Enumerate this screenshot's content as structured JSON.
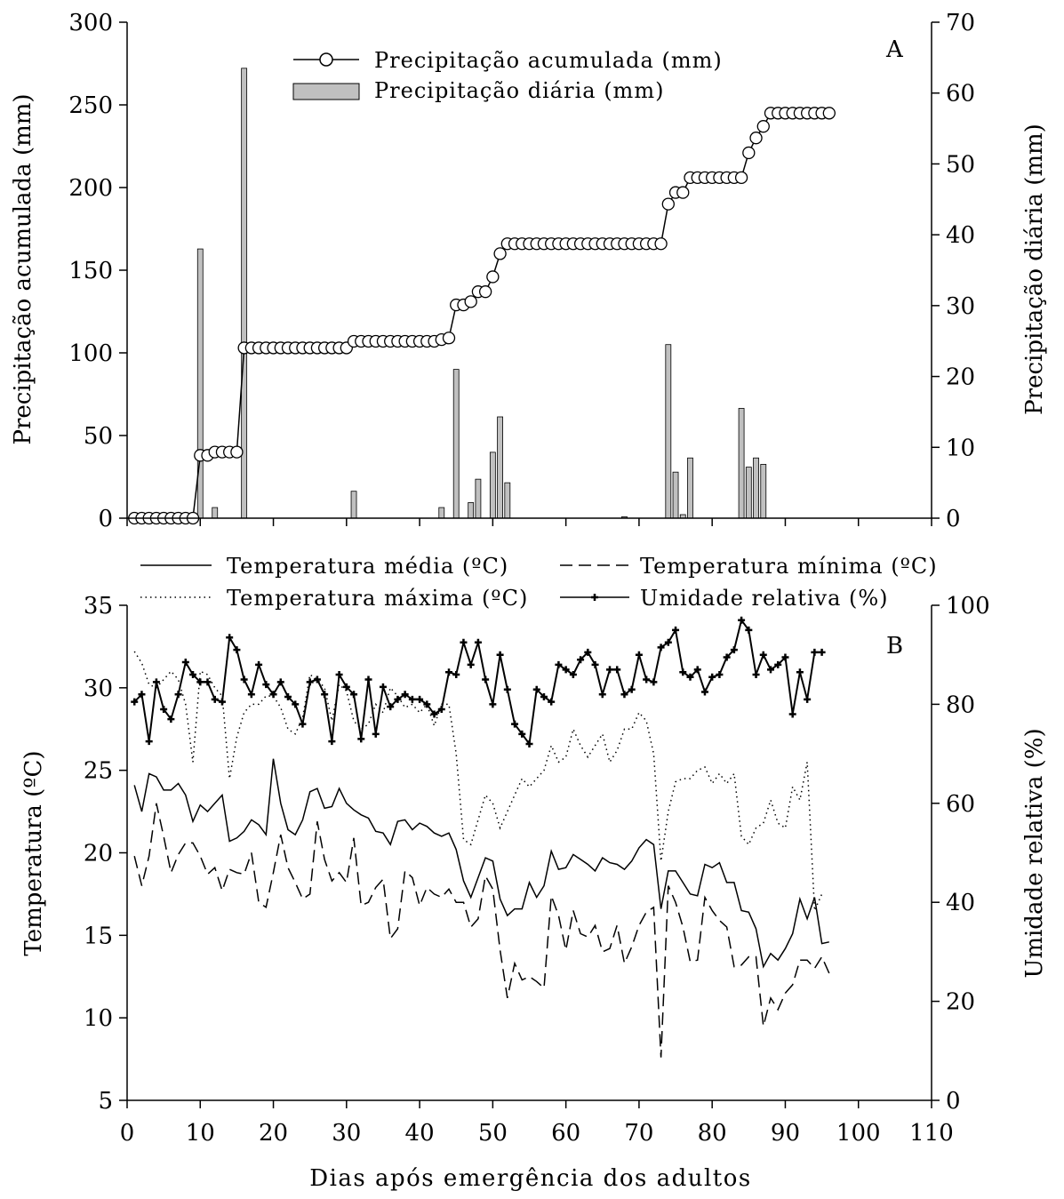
{
  "x_axis": {
    "label": "Dias após emergência dos adultos",
    "min": 0,
    "max": 110,
    "ticks": [
      0,
      10,
      20,
      30,
      40,
      50,
      60,
      70,
      80,
      90,
      100,
      110
    ]
  },
  "chart_data": [
    {
      "panel_label": "A",
      "type": "bar+line",
      "legend_position": "top-center",
      "grid": false,
      "y_left": {
        "label": "Precipitação acumulada (mm)",
        "min": 0,
        "max": 300,
        "ticks": [
          0,
          50,
          100,
          150,
          200,
          250,
          300
        ]
      },
      "y_right": {
        "label": "Precipitação diária (mm)",
        "min": 0,
        "max": 70,
        "ticks": [
          0,
          10,
          20,
          30,
          40,
          50,
          60,
          70
        ]
      },
      "series": [
        {
          "name": "Precipitação acumulada (mm)",
          "type": "line",
          "axis": "left",
          "marker": "open-circle",
          "x": [
            1,
            2,
            3,
            4,
            5,
            6,
            7,
            8,
            9,
            10,
            11,
            12,
            13,
            14,
            15,
            16,
            17,
            18,
            19,
            20,
            21,
            22,
            23,
            24,
            25,
            26,
            27,
            28,
            29,
            30,
            31,
            32,
            33,
            34,
            35,
            36,
            37,
            38,
            39,
            40,
            41,
            42,
            43,
            44,
            45,
            46,
            47,
            48,
            49,
            50,
            51,
            52,
            53,
            54,
            55,
            56,
            57,
            58,
            59,
            60,
            61,
            62,
            63,
            64,
            65,
            66,
            67,
            68,
            69,
            70,
            71,
            72,
            73,
            74,
            75,
            76,
            77,
            78,
            79,
            80,
            81,
            82,
            83,
            84,
            85,
            86,
            87,
            88,
            89,
            90,
            91,
            92,
            93,
            94,
            95,
            96
          ],
          "y": [
            0,
            0,
            0,
            0,
            0,
            0,
            0,
            0,
            0,
            38,
            38,
            40,
            40,
            40,
            40,
            103,
            103,
            103,
            103,
            103,
            103,
            103,
            103,
            103,
            103,
            103,
            103,
            103,
            103,
            103,
            107,
            107,
            107,
            107,
            107,
            107,
            107,
            107,
            107,
            107,
            107,
            107,
            108,
            109,
            129,
            129,
            131,
            137,
            137,
            146,
            160,
            166,
            166,
            166,
            166,
            166,
            166,
            166,
            166,
            166,
            166,
            166,
            166,
            166,
            166,
            166,
            166,
            166,
            166,
            166,
            166,
            166,
            166,
            190,
            197,
            197,
            206,
            206,
            206,
            206,
            206,
            206,
            206,
            206,
            221,
            230,
            237,
            245,
            245,
            245,
            245,
            245,
            245,
            245,
            245,
            245
          ]
        },
        {
          "name": "Precipitação diária (mm)",
          "type": "bar",
          "axis": "right",
          "x": [
            10,
            12,
            16,
            31,
            43,
            45,
            47,
            48,
            50,
            51,
            52,
            68,
            74,
            75,
            76,
            77,
            84,
            85,
            86,
            87
          ],
          "y": [
            38,
            1.5,
            63.5,
            3.8,
            1.5,
            21,
            2.2,
            5.5,
            9.3,
            14.3,
            5,
            0.2,
            24.5,
            6.5,
            0.5,
            8.5,
            15.5,
            7.2,
            8.5,
            7.6
          ]
        }
      ]
    },
    {
      "panel_label": "B",
      "type": "line",
      "legend_position": "top-center",
      "grid": false,
      "y_left": {
        "label": "Temperatura (ºC)",
        "min": 5,
        "max": 35,
        "ticks": [
          5,
          10,
          15,
          20,
          25,
          30,
          35
        ]
      },
      "y_right": {
        "label": "Umidade relativa (%)",
        "min": 0,
        "max": 100,
        "ticks": [
          0,
          20,
          40,
          60,
          80,
          100
        ]
      },
      "series": [
        {
          "name": "Temperatura média (ºC)",
          "style": "solid",
          "axis": "left",
          "x_start": 1,
          "y": [
            24.1,
            22.5,
            24.8,
            24.6,
            23.8,
            23.8,
            24.2,
            23.5,
            21.9,
            22.9,
            22.5,
            23.0,
            23.5,
            20.7,
            20.9,
            21.3,
            22.0,
            21.7,
            21.1,
            25.7,
            23.0,
            21.4,
            21.1,
            22.0,
            23.7,
            23.9,
            22.7,
            22.8,
            23.9,
            23.0,
            22.6,
            22.3,
            22.1,
            21.3,
            21.2,
            20.5,
            21.9,
            22.0,
            21.4,
            21.8,
            21.6,
            21.2,
            21.0,
            21.2,
            20.2,
            18.3,
            17.3,
            18.5,
            19.7,
            19.5,
            17.2,
            16.2,
            16.6,
            16.6,
            18.2,
            17.3,
            18.0,
            20.1,
            19.0,
            19.1,
            19.9,
            19.6,
            19.3,
            18.9,
            19.7,
            19.4,
            19.3,
            19.0,
            19.5,
            20.3,
            20.8,
            20.5,
            16.6,
            18.9,
            18.9,
            18.2,
            17.5,
            17.4,
            19.3,
            19.1,
            19.4,
            18.2,
            18.2,
            16.5,
            16.4,
            15.4,
            13.1,
            13.9,
            13.5,
            14.2,
            15.1,
            17.2,
            16.0,
            17.3,
            14.5,
            14.6
          ]
        },
        {
          "name": "Temperatura mínima (ºC)",
          "style": "dashed",
          "axis": "left",
          "x_start": 1,
          "y": [
            19.8,
            18.0,
            19.8,
            23.0,
            21.0,
            18.8,
            19.9,
            20.6,
            20.6,
            19.8,
            18.7,
            19.1,
            17.7,
            19.0,
            18.8,
            18.7,
            20.0,
            17.0,
            16.7,
            18.8,
            21.1,
            19.1,
            18.2,
            17.2,
            17.5,
            21.9,
            19.6,
            18.3,
            18.8,
            18.2,
            20.9,
            16.8,
            17.0,
            17.9,
            18.4,
            14.8,
            15.4,
            18.9,
            18.5,
            16.8,
            17.9,
            17.5,
            17.3,
            17.8,
            17.0,
            17.0,
            15.5,
            16.0,
            18.6,
            17.8,
            14.1,
            11.2,
            13.3,
            12.3,
            12.5,
            12.2,
            11.8,
            17.4,
            16.2,
            14.1,
            16.5,
            15.1,
            14.9,
            15.6,
            14.0,
            14.2,
            15.6,
            13.3,
            14.3,
            15.6,
            16.4,
            16.7,
            7.6,
            18.0,
            17.0,
            15.5,
            13.4,
            13.5,
            17.3,
            16.5,
            15.9,
            15.5,
            13.1,
            13.2,
            13.7,
            13.7,
            9.5,
            11.2,
            10.5,
            11.5,
            12.0,
            13.5,
            13.5,
            13.0,
            13.7,
            12.7
          ]
        },
        {
          "name": "Temperatura máxima (ºC)",
          "style": "dotted",
          "axis": "left",
          "x_start": 1,
          "y": [
            32.2,
            31.5,
            30.2,
            30.0,
            30.5,
            31.0,
            30.5,
            29.0,
            25.5,
            31.0,
            30.8,
            30.0,
            29.5,
            24.5,
            27.0,
            28.5,
            29.0,
            29.0,
            29.5,
            29.5,
            28.8,
            27.5,
            27.2,
            28.2,
            30.8,
            30.5,
            30.0,
            28.0,
            30.2,
            29.8,
            28.0,
            27.5,
            27.8,
            29.0,
            28.5,
            30.0,
            29.5,
            28.8,
            29.0,
            28.5,
            29.0,
            27.7,
            29.0,
            29.0,
            26.0,
            20.8,
            20.5,
            22.0,
            23.5,
            23.0,
            21.5,
            22.5,
            23.5,
            24.5,
            24.0,
            24.5,
            25.0,
            26.5,
            25.5,
            25.8,
            27.5,
            26.5,
            25.8,
            26.5,
            27.2,
            25.5,
            26.2,
            27.5,
            27.5,
            28.5,
            28.0,
            26.0,
            19.5,
            22.5,
            24.3,
            24.5,
            24.5,
            25.0,
            25.2,
            24.2,
            24.8,
            24.2,
            24.8,
            21.0,
            20.5,
            21.5,
            21.8,
            23.2,
            21.8,
            21.5,
            24.0,
            23.2,
            25.5,
            16.5,
            17.5
          ]
        },
        {
          "name": "Umidade relativa (%)",
          "style": "solid",
          "marker": "plus",
          "axis": "right",
          "x_start": 1,
          "y": [
            80.5,
            82,
            72.5,
            84.5,
            79,
            77,
            82,
            88.5,
            86,
            84.5,
            84.5,
            81,
            80.5,
            93.5,
            91,
            85,
            82,
            88,
            84,
            82,
            84.5,
            81.5,
            80,
            76,
            84.5,
            85,
            82,
            72.5,
            86,
            83.5,
            82,
            73,
            85,
            74,
            83.5,
            79.5,
            81,
            82,
            81,
            81,
            80,
            78,
            79,
            86.5,
            86,
            92.5,
            88,
            92.5,
            85,
            80,
            90,
            83,
            76,
            74,
            72,
            83,
            81.5,
            80.5,
            88,
            87,
            86,
            89,
            90.5,
            88,
            82,
            87,
            87,
            82,
            83,
            90,
            85,
            84.5,
            91.5,
            92.5,
            95,
            86.5,
            85.5,
            87,
            82.5,
            85.5,
            86,
            89.5,
            91,
            97,
            95,
            86,
            90,
            87,
            88,
            89.5,
            78,
            86.5,
            81,
            90.5,
            90.5
          ]
        }
      ]
    }
  ]
}
